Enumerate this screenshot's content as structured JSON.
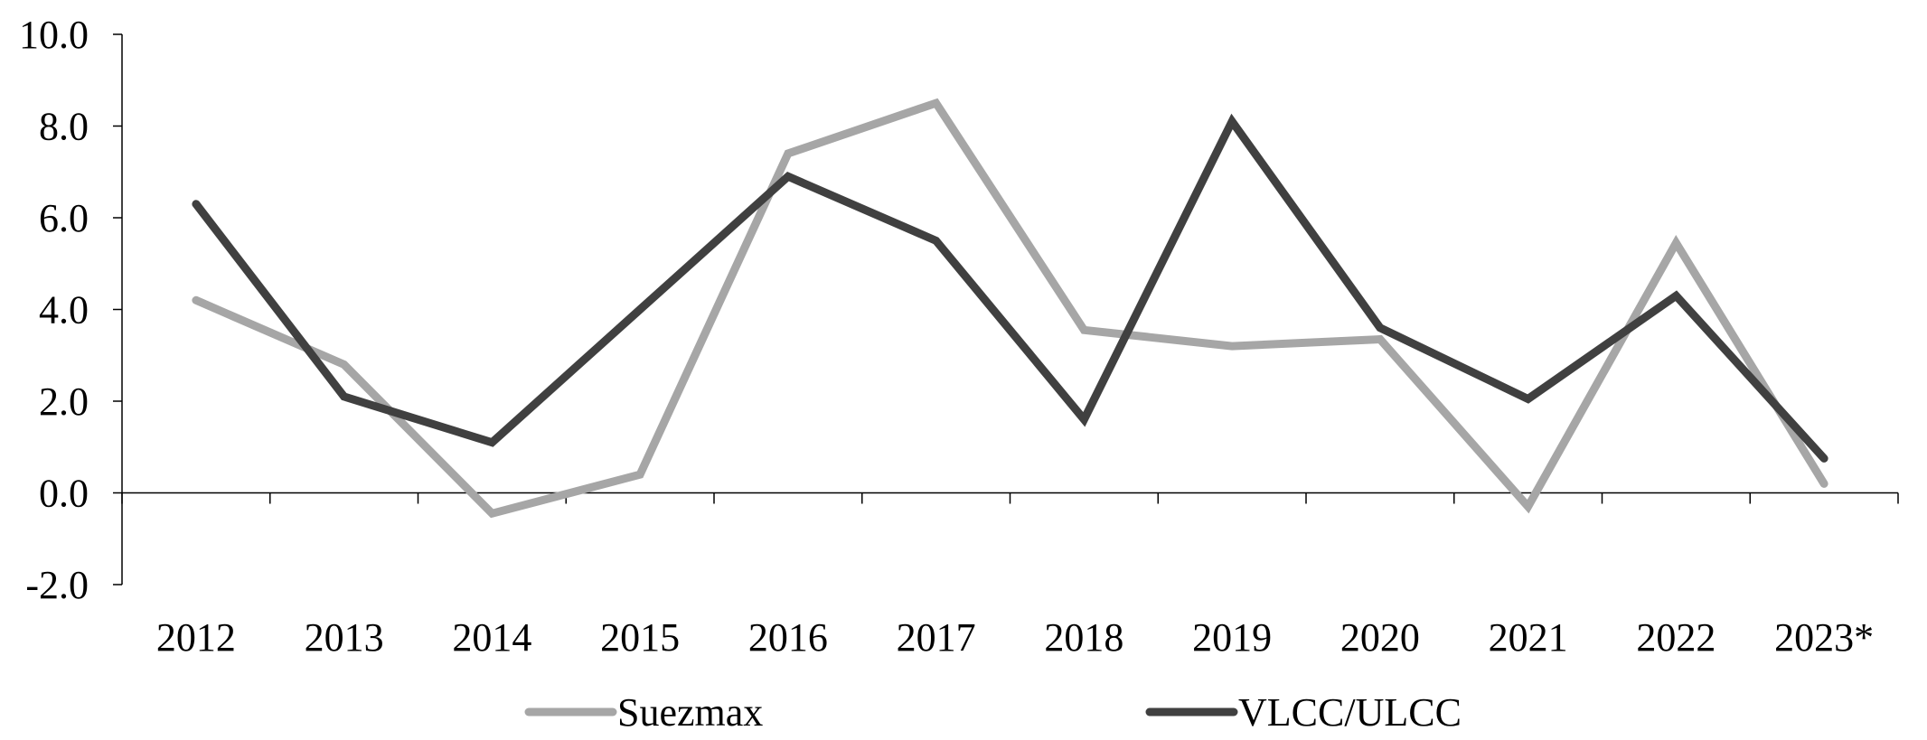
{
  "chart_data": {
    "type": "line",
    "title": "",
    "xlabel": "",
    "ylabel": "",
    "categories": [
      "2012",
      "2013",
      "2014",
      "2015",
      "2016",
      "2017",
      "2018",
      "2019",
      "2020",
      "2021",
      "2022",
      "2023*"
    ],
    "ylim": [
      -2.0,
      10.0
    ],
    "yticks": [
      -2.0,
      0.0,
      2.0,
      4.0,
      6.0,
      8.0,
      10.0
    ],
    "ytick_labels": [
      "-2.0",
      "0.0",
      "2.0",
      "4.0",
      "6.0",
      "8.0",
      "10.0"
    ],
    "grid": false,
    "legend_position": "bottom",
    "series": [
      {
        "name": "Suezmax",
        "color": "#a6a6a6",
        "values": [
          4.2,
          2.8,
          -0.45,
          0.4,
          7.4,
          8.5,
          3.55,
          3.2,
          3.35,
          -0.3,
          5.45,
          0.2
        ]
      },
      {
        "name": "VLCC/ULCC",
        "color": "#404040",
        "values": [
          6.3,
          2.1,
          1.1,
          4.0,
          6.9,
          5.5,
          1.6,
          8.1,
          3.6,
          2.05,
          4.3,
          0.75
        ]
      }
    ]
  }
}
